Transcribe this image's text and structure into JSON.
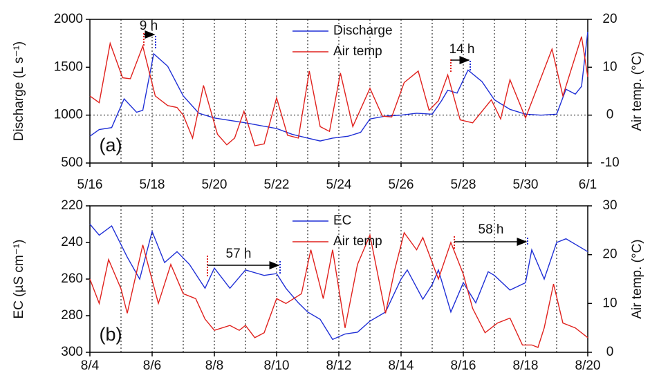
{
  "chart_data": [
    {
      "type": "line",
      "title": "(a)",
      "ylabel": "Discharge (L s⁻¹)",
      "y2label": "Air temp. (°C)",
      "xlim": [
        0,
        16
      ],
      "xticks": [
        {
          "value": 0,
          "label": "5/16"
        },
        {
          "value": 2,
          "label": "5/18"
        },
        {
          "value": 4,
          "label": "5/20"
        },
        {
          "value": 6,
          "label": "5/22"
        },
        {
          "value": 8,
          "label": "5/24"
        },
        {
          "value": 10,
          "label": "5/26"
        },
        {
          "value": 12,
          "label": "5/28"
        },
        {
          "value": 14,
          "label": "5/30"
        },
        {
          "value": 16,
          "label": "6/1"
        }
      ],
      "xgrid_lines": [
        1,
        2,
        3,
        4,
        5,
        6,
        7,
        8,
        9,
        10,
        11,
        12,
        13,
        14,
        15
      ],
      "ylim": [
        500,
        2000
      ],
      "yticks": [
        500,
        1000,
        1500,
        2000
      ],
      "y2lim": [
        -10,
        20
      ],
      "y2ticks": [
        -10,
        0,
        10,
        20
      ],
      "hline": 1000,
      "series": [
        {
          "name": "Discharge",
          "color": "#1f2fd6",
          "x": [
            0,
            0.3,
            0.7,
            1.1,
            1.5,
            1.7,
            2.05,
            2.5,
            3,
            3.5,
            4,
            5,
            6,
            6.5,
            7,
            7.4,
            7.8,
            8.3,
            8.7,
            9,
            9.5,
            10,
            10.5,
            11,
            11.3,
            11.5,
            11.8,
            12.15,
            12.6,
            13,
            13.5,
            14,
            14.5,
            15,
            15.3,
            15.6,
            15.8,
            16
          ],
          "values": [
            780,
            850,
            870,
            1170,
            1030,
            1050,
            1640,
            1510,
            1200,
            1020,
            970,
            920,
            860,
            800,
            760,
            730,
            760,
            780,
            820,
            960,
            990,
            1000,
            1020,
            1010,
            1150,
            1260,
            1230,
            1470,
            1350,
            1160,
            1060,
            1010,
            1000,
            1010,
            1270,
            1220,
            1300,
            1870
          ]
        },
        {
          "name": "Air temp",
          "color": "#e0211d",
          "axis": "y2",
          "x": [
            0,
            0.3,
            0.65,
            1.05,
            1.3,
            1.7,
            2.1,
            2.5,
            2.8,
            3,
            3.3,
            3.65,
            4.1,
            4.4,
            4.65,
            4.95,
            5.3,
            5.6,
            6,
            6.35,
            6.7,
            7.05,
            7.4,
            7.7,
            8.05,
            8.45,
            9,
            9.4,
            9.7,
            10.1,
            10.55,
            10.9,
            11.2,
            11.5,
            11.9,
            12.3,
            12.9,
            13.2,
            13.5,
            14,
            14.85,
            15.2,
            15.8,
            16
          ],
          "values": [
            4,
            2.6,
            15,
            7.8,
            7.6,
            14.4,
            4,
            2,
            1.6,
            0,
            -4.8,
            6.2,
            -4,
            -6.2,
            -4.8,
            0.8,
            -6.4,
            -6,
            3.6,
            -4.2,
            -4.8,
            9.2,
            -2.4,
            -3.4,
            8.8,
            -2.4,
            5.6,
            -0.2,
            -0.4,
            6.8,
            9.2,
            1,
            3,
            8.4,
            -1,
            -1.6,
            3.2,
            -0.8,
            7.4,
            -0.6,
            13.8,
            4,
            16.4,
            8
          ]
        }
      ],
      "annotations": [
        "9 h",
        "14 h"
      ]
    },
    {
      "type": "line",
      "title": "(b)",
      "ylabel": "EC (µS cm⁻¹)",
      "y2label": "Air temp. (°C)",
      "xlim": [
        0,
        16
      ],
      "xticks": [
        {
          "value": 0,
          "label": "8/4"
        },
        {
          "value": 2,
          "label": "8/6"
        },
        {
          "value": 4,
          "label": "8/8"
        },
        {
          "value": 6,
          "label": "8/10"
        },
        {
          "value": 8,
          "label": "8/12"
        },
        {
          "value": 10,
          "label": "8/14"
        },
        {
          "value": 12,
          "label": "8/16"
        },
        {
          "value": 14,
          "label": "8/18"
        },
        {
          "value": 16,
          "label": "8/20"
        }
      ],
      "xgrid_lines": [
        1,
        2,
        3,
        4,
        5,
        6,
        7,
        8,
        9,
        10,
        11,
        12,
        13,
        14,
        15
      ],
      "ylim": [
        300,
        220
      ],
      "yticks": [
        220,
        240,
        260,
        280,
        300
      ],
      "y2lim": [
        0,
        30
      ],
      "y2ticks": [
        0,
        10,
        20,
        30
      ],
      "series": [
        {
          "name": "EC",
          "color": "#1f2fd6",
          "x": [
            0,
            0.3,
            0.7,
            1.2,
            1.6,
            2,
            2.4,
            2.8,
            3.2,
            3.7,
            4,
            4.5,
            5,
            5.6,
            6,
            6.3,
            6.7,
            7,
            7.4,
            7.8,
            8.2,
            8.6,
            9,
            9.5,
            10,
            10.2,
            10.7,
            11,
            11.2,
            11.6,
            12,
            12.4,
            12.8,
            13,
            13.5,
            14,
            14.2,
            14.6,
            15,
            15.3,
            16
          ],
          "values": [
            230,
            236,
            231,
            248,
            260,
            234,
            251,
            245,
            252,
            265,
            254,
            265,
            255,
            258,
            257,
            265,
            273,
            278,
            282,
            293,
            290,
            289,
            283,
            278,
            260,
            255,
            271,
            263,
            255,
            278,
            262,
            273,
            256,
            258,
            266,
            262,
            244,
            260,
            240,
            238,
            245
          ]
        },
        {
          "name": "Air temp",
          "color": "#e0211d",
          "axis": "y2",
          "x": [
            0,
            0.3,
            0.6,
            1,
            1.2,
            1.7,
            2.2,
            2.6,
            3,
            3.4,
            3.7,
            4,
            4.5,
            4.8,
            5,
            5.3,
            5.6,
            6,
            6.3,
            6.8,
            7.1,
            7.5,
            7.8,
            8.2,
            8.6,
            9,
            9.5,
            9.8,
            10.1,
            10.5,
            10.7,
            11.2,
            11.6,
            12,
            12.3,
            12.7,
            13.1,
            13.5,
            13.9,
            14.2,
            14.4,
            14.6,
            14.9,
            15.2,
            15.6,
            16
          ],
          "values": [
            15,
            10,
            19,
            13,
            8,
            22,
            10,
            18,
            12,
            11,
            6.8,
            4.5,
            5.5,
            4.5,
            5.5,
            3,
            4,
            11,
            10,
            12,
            21,
            11,
            21,
            5,
            18,
            24,
            8,
            17,
            24.5,
            21,
            23.5,
            15,
            22.5,
            16,
            9,
            4,
            6,
            7,
            1.5,
            1.5,
            1,
            5,
            14,
            6,
            5,
            3
          ]
        }
      ],
      "annotations": [
        "57 h",
        "58 h"
      ]
    }
  ]
}
